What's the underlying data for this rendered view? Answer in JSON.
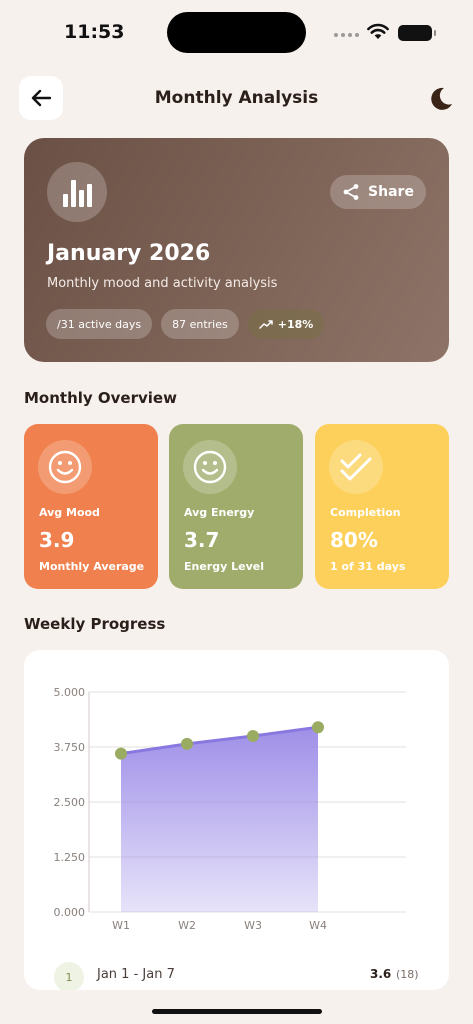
{
  "status_bar": {
    "time": "11:53"
  },
  "header": {
    "title": "Monthly Analysis"
  },
  "hero": {
    "title": "January 2026",
    "subtitle": "Monthly mood and activity analysis",
    "share_label": "Share",
    "chips": {
      "active_days": "/31 active days",
      "entries": "87 entries",
      "trend": "+18%"
    }
  },
  "overview": {
    "title": "Monthly Overview",
    "cards": [
      {
        "label": "Avg Mood",
        "value": "3.9",
        "sub": "Monthly Average",
        "color": "#f0804d"
      },
      {
        "label": "Avg Energy",
        "value": "3.7",
        "sub": "Energy Level",
        "color": "#9fac6c"
      },
      {
        "label": "Completion",
        "value": "80%",
        "sub": "1 of 31 days",
        "color": "#fcd05a"
      }
    ]
  },
  "weekly": {
    "title": "Weekly Progress",
    "first_week": {
      "number": "1",
      "range": "Jan 1 - Jan 7",
      "score": "3.6",
      "count": "(18)"
    }
  },
  "chart_data": {
    "type": "area",
    "categories": [
      "W1",
      "W2",
      "W3",
      "W4"
    ],
    "series": [
      {
        "values": [
          3.6,
          3.82,
          4.0,
          4.2
        ]
      }
    ],
    "yticks": [
      "0.000",
      "1.250",
      "2.500",
      "3.750",
      "5.000"
    ],
    "ylim": [
      0,
      5
    ],
    "grid": true,
    "colors": {
      "fill_top": "#9f8fe8",
      "line": "#8878e0",
      "point": "#9aab62"
    }
  }
}
